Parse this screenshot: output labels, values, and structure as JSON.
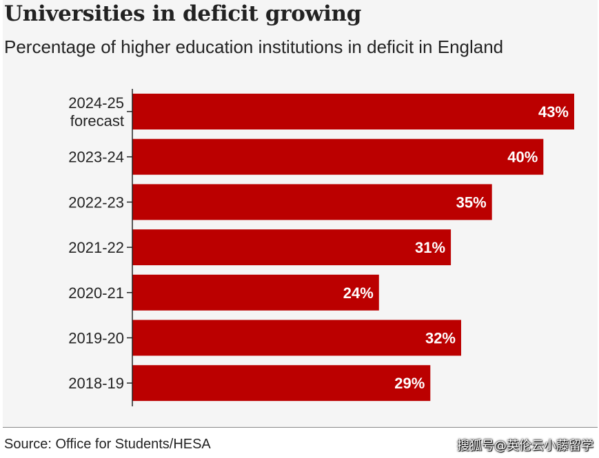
{
  "title": "Universities in deficit growing",
  "subtitle": "Percentage of higher education institutions in deficit in England",
  "source": "Source: Office for Students/HESA",
  "watermark": "搜狐号@英伦云小藤留学",
  "colors": {
    "bar": "#bb0000",
    "background": "#f5f5f5",
    "axis": "#222222"
  },
  "chart_data": {
    "type": "bar",
    "orientation": "horizontal",
    "categories": [
      [
        "2024-25",
        "forecast"
      ],
      [
        "2023-24"
      ],
      [
        "2022-23"
      ],
      [
        "2021-22"
      ],
      [
        "2020-21"
      ],
      [
        "2019-20"
      ],
      [
        "2018-19"
      ]
    ],
    "values": [
      43,
      40,
      35,
      31,
      24,
      32,
      29
    ],
    "value_labels": [
      "43%",
      "40%",
      "35%",
      "31%",
      "24%",
      "32%",
      "29%"
    ],
    "unit": "%",
    "xlim": [
      0,
      43
    ],
    "title": "Universities in deficit growing",
    "subtitle": "Percentage of higher education institutions in deficit in England",
    "grid": false,
    "legend": "none"
  }
}
